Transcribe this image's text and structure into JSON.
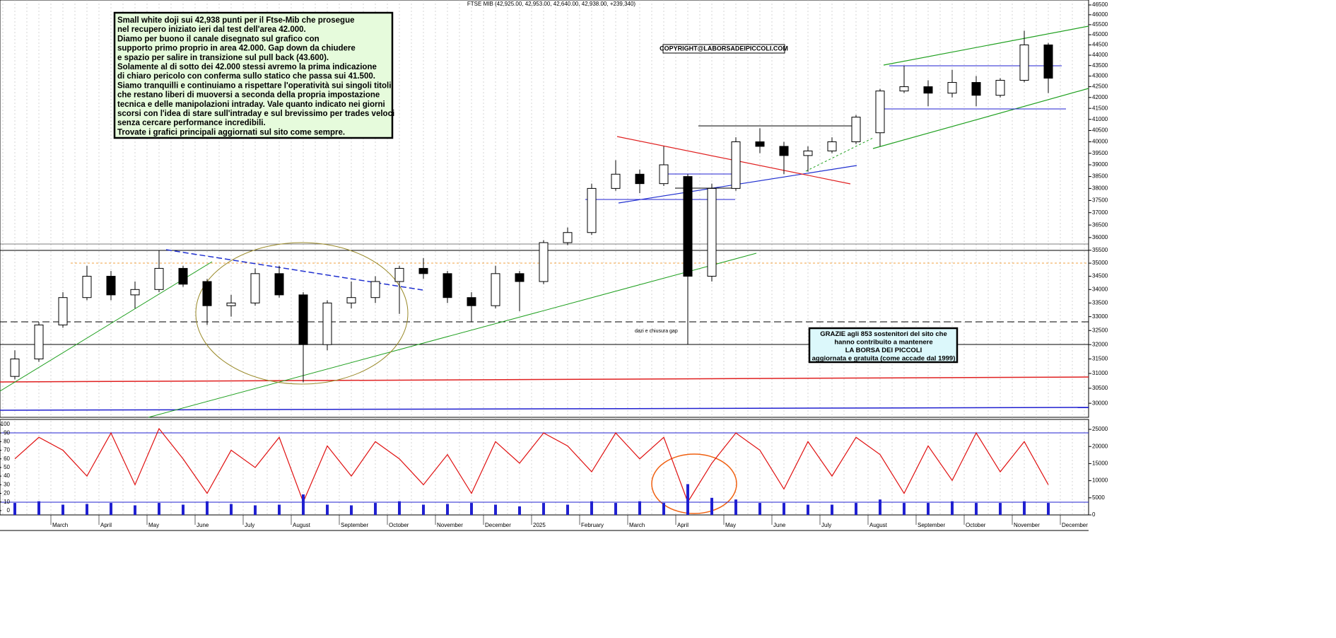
{
  "chart_data": [
    {
      "type": "candlestick",
      "title": "FTSE MIB (42,925.00, 42,953.00, 42,640.00, 42,938.00, +239,340)",
      "categories": [
        null,
        null,
        "March",
        null,
        "April",
        null,
        "May",
        null,
        "June",
        null,
        "July",
        null,
        "August",
        null,
        "September",
        null,
        "October",
        null,
        "November",
        null,
        "December",
        null,
        "2025",
        null,
        "February",
        null,
        "March",
        null,
        "April",
        null,
        "May",
        null,
        "June",
        null,
        "July",
        null,
        "August",
        null,
        "September",
        null,
        "October",
        null,
        "November",
        null,
        "December"
      ],
      "open": [
        30900,
        31500,
        32700,
        33700,
        34500,
        33800,
        34000,
        34800,
        34300,
        33400,
        33500,
        34600,
        33800,
        32000,
        33500,
        33700,
        34300,
        34800,
        34600,
        33700,
        33400,
        34600,
        34300,
        35800,
        36200,
        38000,
        38600,
        38200,
        38500,
        34500,
        38000,
        40000,
        39800,
        39400,
        39600,
        40000,
        40400,
        42300,
        42500,
        42200,
        42700,
        42100,
        42800,
        44500,
        null
      ],
      "high": [
        31800,
        32800,
        33900,
        34900,
        34700,
        34300,
        35500,
        34900,
        34400,
        33800,
        34800,
        34900,
        33900,
        33600,
        34300,
        34500,
        34900,
        35200,
        34700,
        33900,
        34900,
        34700,
        35900,
        36400,
        38200,
        39200,
        38800,
        39800,
        38600,
        38200,
        40200,
        40600,
        40000,
        39800,
        40200,
        41200,
        42400,
        43500,
        42800,
        43300,
        43000,
        42900,
        45200,
        44600,
        null
      ],
      "low": [
        30800,
        31400,
        32600,
        33600,
        33600,
        33300,
        33900,
        34100,
        32700,
        33000,
        33400,
        33700,
        30700,
        31800,
        33300,
        33500,
        33100,
        34400,
        33500,
        32800,
        33300,
        33200,
        34200,
        35700,
        36100,
        37900,
        37800,
        38100,
        32000,
        34300,
        37900,
        39500,
        38600,
        38700,
        39500,
        39900,
        39800,
        42200,
        41600,
        42000,
        41600,
        42000,
        42700,
        42200,
        null
      ],
      "close": [
        31500,
        32700,
        33700,
        34500,
        33800,
        34000,
        34800,
        34200,
        33400,
        33500,
        34600,
        33800,
        32000,
        33500,
        33700,
        34300,
        34800,
        34600,
        33700,
        33400,
        34600,
        34300,
        35800,
        36200,
        38000,
        38600,
        38200,
        39000,
        34500,
        38000,
        40000,
        39800,
        39400,
        39600,
        40000,
        41100,
        42300,
        42500,
        42200,
        42700,
        42100,
        42800,
        44500,
        42900,
        null
      ],
      "log_scale": true,
      "ylim": [
        29540,
        46754
      ],
      "yticks": [
        30000,
        30500,
        31000,
        31500,
        32000,
        32500,
        33000,
        33500,
        34000,
        34500,
        35000,
        35500,
        36000,
        36500,
        37000,
        37500,
        38000,
        38500,
        39000,
        39500,
        40000,
        40500,
        41000,
        41500,
        42000,
        42500,
        43000,
        43500,
        44000,
        44500,
        45000,
        45500,
        46000,
        46500
      ],
      "annotations": {
        "comment": [
          "Small white doji sui 42,938 punti per il Ftse-Mib che prosegue",
          "nel recupero iniziato ieri dal test dell'area 42.000.",
          "Diamo per buono il canale disegnato sul grafico con",
          "supporto primo proprio in area 42.000. Gap down da chiudere",
          "e spazio per salire in transizione sul pull back (43.600).",
          "Solamente al di sotto dei 42.000 stessi avremo la prima indicazione",
          "di chiaro pericolo con conferma sullo statico che passa sui 41.500.",
          "Siamo tranquilli e continuiamo a rispettare l'operatività sui singoli titoli",
          "che restano liberi di muoversi a seconda della propria impostazione",
          "tecnica e delle manipolazioni intraday. Vale quanto indicato nei giorni",
          "scorsi con l'idea di stare sull'intraday e sul brevissimo per trades veloci",
          "senza cercare performance incredibili.",
          "Trovate i grafici principali aggiornati sul sito come sempre."
        ],
        "copyright": "COPYRIGHT@LABORSADEIPICCOLI.COM",
        "thanks": [
          "GRAZIE  agli 853  sostenitori del sito che",
          "hanno contribuito a mantenere",
          "LA BORSA DEI PICCOLI",
          "aggiornata e gratuita (come accade dal 1999)"
        ],
        "note": "dazi e chiusura gap"
      }
    },
    {
      "type": "indicator",
      "ylim": [
        -5,
        105.7
      ],
      "yticks": [
        0,
        10,
        20,
        30,
        40,
        50,
        60,
        70,
        80,
        90,
        100
      ],
      "y2lim": [
        0,
        27900
      ],
      "y2ticks": [
        0,
        5000,
        10000,
        15000,
        20000,
        25000
      ],
      "series": [
        {
          "type": "line",
          "color": "#e01010",
          "values": [
            60,
            85,
            70,
            40,
            90,
            30,
            95,
            60,
            20,
            70,
            50,
            85,
            10,
            75,
            40,
            80,
            60,
            30,
            65,
            20,
            80,
            55,
            90,
            75,
            45,
            90,
            60,
            85,
            10,
            55,
            90,
            70,
            25,
            80,
            40,
            85,
            65,
            20,
            75,
            35,
            90,
            45,
            80,
            30,
            null
          ]
        },
        {
          "type": "bar",
          "axis": "y2",
          "color": "#2020d0",
          "values": [
            3500,
            4000,
            3000,
            3200,
            3500,
            2800,
            3500,
            3000,
            4000,
            3200,
            2800,
            3000,
            6000,
            3000,
            2800,
            3500,
            4000,
            3000,
            3200,
            3500,
            3000,
            2500,
            3500,
            3000,
            4000,
            3500,
            4000,
            3500,
            9000,
            5000,
            4500,
            3500,
            3500,
            3000,
            3000,
            3500,
            4500,
            3500,
            3500,
            4000,
            3500,
            3500,
            4000,
            3500,
            null
          ]
        }
      ]
    }
  ]
}
